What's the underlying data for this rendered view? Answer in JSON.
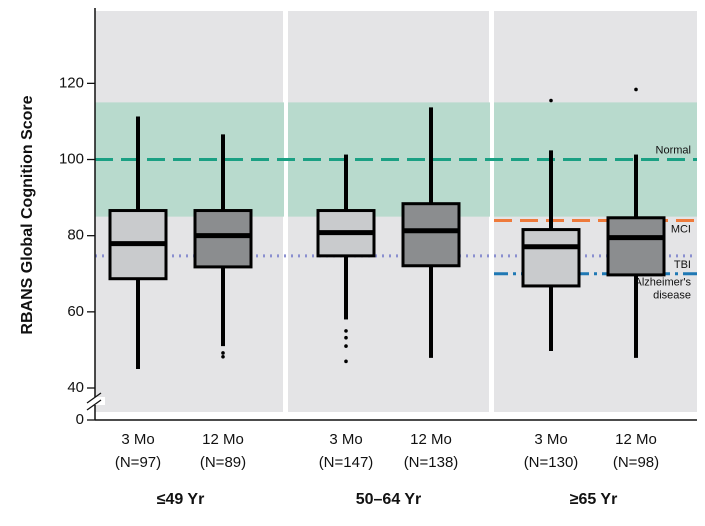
{
  "chart_data": {
    "type": "box",
    "ylabel": "RBANS Global Cognition Score",
    "ylim": [
      0,
      139
    ],
    "yticks": [
      0,
      40,
      60,
      80,
      100,
      120
    ],
    "axis_break": true,
    "background": "#e4e4e6",
    "normal_range": [
      85,
      115
    ],
    "normal_range_color": "#b8dacd",
    "groups": [
      {
        "name": "≤49 Yr",
        "boxes": [
          {
            "label": "3 Mo",
            "n": "(N=97)",
            "color": "#c9cbcd",
            "whisker_low": 45,
            "q1": 68.7,
            "median": 77.9,
            "q3": 86.6,
            "whisker_high": 111.3,
            "outliers": []
          },
          {
            "label": "12 Mo",
            "n": "(N=89)",
            "color": "#8b8d8f",
            "whisker_low": 51,
            "q1": 71.8,
            "median": 80,
            "q3": 86.6,
            "whisker_high": 106.6,
            "outliers": [
              49.2,
              48.2
            ]
          }
        ]
      },
      {
        "name": "50–64 Yr",
        "boxes": [
          {
            "label": "3 Mo",
            "n": "(N=147)",
            "color": "#c9cbcd",
            "whisker_low": 58,
            "q1": 74.7,
            "median": 80.8,
            "q3": 86.6,
            "whisker_high": 101.3,
            "outliers": [
              55,
              53.2,
              51,
              47
            ]
          },
          {
            "label": "12 Mo",
            "n": "(N=138)",
            "color": "#8b8d8f",
            "whisker_low": 47.9,
            "q1": 72.1,
            "median": 81.3,
            "q3": 88.4,
            "whisker_high": 113.7,
            "outliers": []
          }
        ]
      },
      {
        "name": "≥65 Yr",
        "boxes": [
          {
            "label": "3 Mo",
            "n": "(N=130)",
            "color": "#c9cbcd",
            "whisker_low": 49.7,
            "q1": 66.8,
            "median": 77.1,
            "q3": 81.6,
            "whisker_high": 102.4,
            "outliers": [
              115.5
            ]
          },
          {
            "label": "12 Mo",
            "n": "(N=98)",
            "color": "#8b8d8f",
            "whisker_low": 47.9,
            "q1": 69.7,
            "median": 79.5,
            "q3": 84.7,
            "whisker_high": 101.3,
            "outliers": [
              118.4
            ]
          }
        ]
      }
    ],
    "ref_lines": [
      {
        "lines": [
          "Normal"
        ],
        "value": 100,
        "color": "#1aa083",
        "style": "dash",
        "span": "all",
        "label_side": "above"
      },
      {
        "lines": [
          "MCI"
        ],
        "value": 84,
        "color": "#ee7a3b",
        "style": "dash",
        "span": "last",
        "label_side": "below"
      },
      {
        "lines": [
          "TBI"
        ],
        "value": 74.7,
        "color": "#8a8fcf",
        "style": "dot",
        "span": "all",
        "label_side": "below"
      },
      {
        "lines": [
          "Alzheimer's",
          "disease"
        ],
        "value": 70,
        "color": "#1f78b4",
        "style": "dashdot",
        "span": "last",
        "label_side": "below"
      }
    ]
  }
}
